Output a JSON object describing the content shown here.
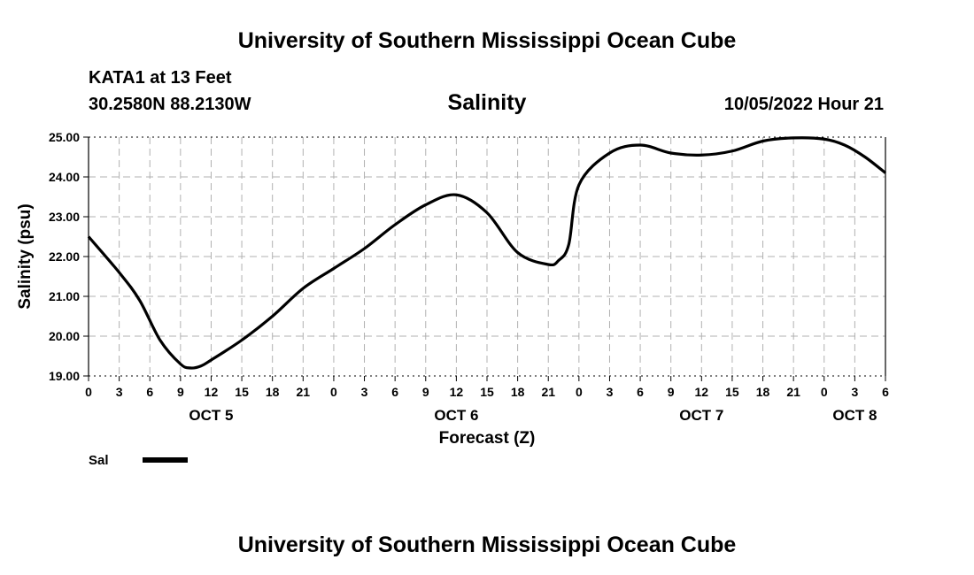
{
  "page": {
    "title": "University of Southern Mississippi Ocean Cube",
    "footer_title": "University of Southern Mississippi Ocean Cube",
    "station": "KATA1 at 13 Feet",
    "coords": "30.2580N  88.2130W",
    "parameter": "Salinity",
    "timestamp": "10/05/2022 Hour 21"
  },
  "chart_data": {
    "type": "line",
    "title": "Salinity",
    "xlabel": "Forecast (Z)",
    "ylabel": "Salinity (psu)",
    "ylim": [
      19,
      25
    ],
    "xlim": [
      0,
      78
    ],
    "grid": true,
    "y_ticks": [
      "19.00",
      "20.00",
      "21.00",
      "22.00",
      "23.00",
      "24.00",
      "25.00"
    ],
    "x_tick_labels": [
      "0",
      "3",
      "6",
      "9",
      "12",
      "15",
      "18",
      "21",
      "0",
      "3",
      "6",
      "9",
      "12",
      "15",
      "18",
      "21",
      "0",
      "3",
      "6",
      "9",
      "12",
      "15",
      "18",
      "21",
      "0",
      "3",
      "6"
    ],
    "day_labels": [
      {
        "label": "OCT 5",
        "at_hours": 12
      },
      {
        "label": "OCT 6",
        "at_hours": 36
      },
      {
        "label": "OCT 7",
        "at_hours": 60
      },
      {
        "label": "OCT 8",
        "at_hours": 75
      }
    ],
    "series": [
      {
        "name": "Sal",
        "color": "#000000",
        "x": [
          0,
          3,
          5,
          7,
          9,
          10,
          11,
          12,
          15,
          18,
          21,
          24,
          27,
          30,
          33,
          36,
          39,
          42,
          45,
          46,
          47,
          48,
          51,
          54,
          57,
          60,
          63,
          66,
          69,
          72,
          74,
          76,
          78
        ],
        "values": [
          22.5,
          21.6,
          20.9,
          19.9,
          19.3,
          19.2,
          19.25,
          19.4,
          19.9,
          20.5,
          21.2,
          21.7,
          22.2,
          22.8,
          23.3,
          23.55,
          23.1,
          22.1,
          21.8,
          21.9,
          22.3,
          23.8,
          24.6,
          24.8,
          24.6,
          24.55,
          24.65,
          24.9,
          24.98,
          24.95,
          24.8,
          24.5,
          24.1
        ]
      }
    ],
    "legend": {
      "label": "Sal",
      "placement": "bottom-left"
    }
  }
}
